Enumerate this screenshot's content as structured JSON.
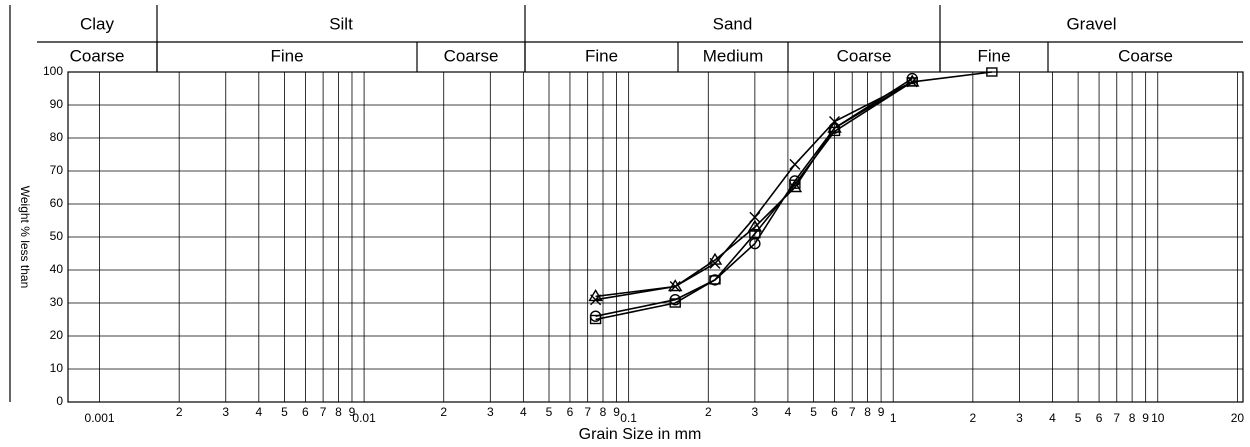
{
  "chart_data": {
    "type": "line",
    "header_row1": [
      "Clay",
      "Silt",
      "Sand",
      "Gravel"
    ],
    "header_row2": [
      "Coarse",
      "Fine",
      "Coarse",
      "Fine",
      "Medium",
      "Coarse",
      "Fine",
      "Coarse"
    ],
    "x_label": "Grain Size in mm",
    "y_label": "Weight % less than",
    "log_x": true,
    "grid": true,
    "xlim": [
      0.00076,
      21
    ],
    "ylim": [
      0,
      100
    ],
    "yticks": [
      0,
      10,
      20,
      30,
      40,
      50,
      60,
      70,
      80,
      90,
      100
    ],
    "xticks": [
      0.001,
      {
        "value": 0.002,
        "label": "2"
      },
      {
        "value": 0.003,
        "label": "3"
      },
      {
        "value": 0.004,
        "label": "4"
      },
      {
        "value": 0.005,
        "label": "5"
      },
      {
        "value": 0.006,
        "label": "6"
      },
      {
        "value": 0.007,
        "label": "7"
      },
      {
        "value": 0.008,
        "label": "8"
      },
      {
        "value": 0.009,
        "label": "9"
      },
      0.01,
      {
        "value": 0.02,
        "label": "2"
      },
      {
        "value": 0.03,
        "label": "3"
      },
      {
        "value": 0.04,
        "label": "4"
      },
      {
        "value": 0.05,
        "label": "5"
      },
      {
        "value": 0.06,
        "label": "6"
      },
      {
        "value": 0.07,
        "label": "7"
      },
      {
        "value": 0.08,
        "label": "8"
      },
      {
        "value": 0.09,
        "label": "9"
      },
      0.1,
      {
        "value": 0.2,
        "label": "2"
      },
      {
        "value": 0.3,
        "label": "3"
      },
      {
        "value": 0.4,
        "label": "4"
      },
      {
        "value": 0.5,
        "label": "5"
      },
      {
        "value": 0.6,
        "label": "6"
      },
      {
        "value": 0.7,
        "label": "7"
      },
      {
        "value": 0.8,
        "label": "8"
      },
      {
        "value": 0.9,
        "label": "9"
      },
      1,
      2,
      3,
      4,
      5,
      6,
      7,
      8,
      9,
      10,
      20
    ],
    "x": [
      0.075,
      0.15,
      0.212,
      0.3,
      0.425,
      0.6,
      1.18,
      2.36
    ],
    "series": [
      {
        "marker": "triangle",
        "color": "#000000",
        "values": [
          32,
          35,
          43,
          53,
          65,
          83,
          97,
          null
        ]
      },
      {
        "marker": "x",
        "color": "#000000",
        "values": [
          31,
          35,
          42,
          56,
          72,
          85,
          97,
          null
        ]
      },
      {
        "marker": "circle",
        "color": "#000000",
        "values": [
          26,
          31,
          37,
          48,
          67,
          83,
          98,
          null
        ]
      },
      {
        "marker": "square",
        "color": "#000000",
        "values": [
          25,
          30,
          37,
          51,
          66,
          82,
          97,
          100
        ]
      }
    ]
  }
}
